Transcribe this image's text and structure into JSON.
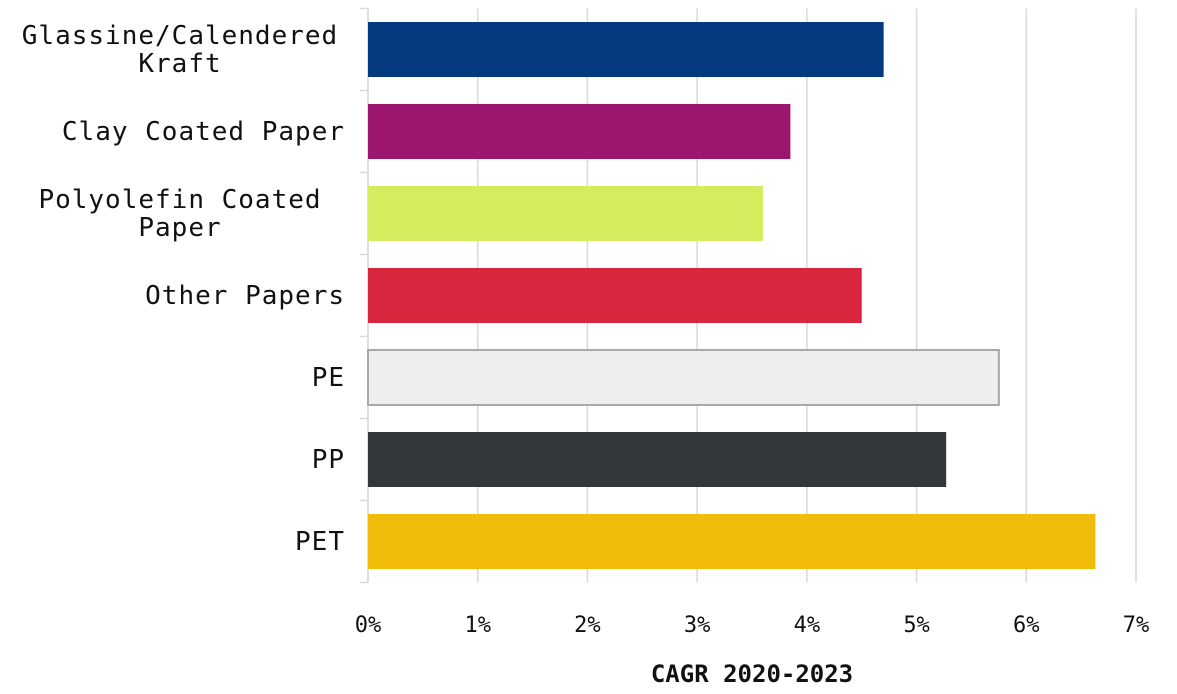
{
  "chart_data": {
    "type": "bar",
    "orientation": "horizontal",
    "x_label": "CAGR 2020-2023",
    "categories": [
      "Glassine/Calendered Kraft",
      "Clay Coated Paper",
      "Polyolefin Coated Paper",
      "Other Papers",
      "PE",
      "PP",
      "PET"
    ],
    "values": [
      4.7,
      3.85,
      3.6,
      4.5,
      5.75,
      5.27,
      6.63
    ],
    "colors": [
      "#063a7e",
      "#9c166f",
      "#d4ed5e",
      "#d7263d",
      "#eeeeee",
      "#343739",
      "#f2bc0a"
    ],
    "xlim": [
      0,
      7
    ],
    "xticks": [
      {
        "value": 0,
        "label": "0%"
      },
      {
        "value": 1,
        "label": "1%"
      },
      {
        "value": 2,
        "label": "2%"
      },
      {
        "value": 3,
        "label": "3%"
      },
      {
        "value": 4,
        "label": "4%"
      },
      {
        "value": 5,
        "label": "5%"
      },
      {
        "value": 6,
        "label": "6%"
      },
      {
        "value": 7,
        "label": "7%"
      }
    ],
    "grid": true
  }
}
